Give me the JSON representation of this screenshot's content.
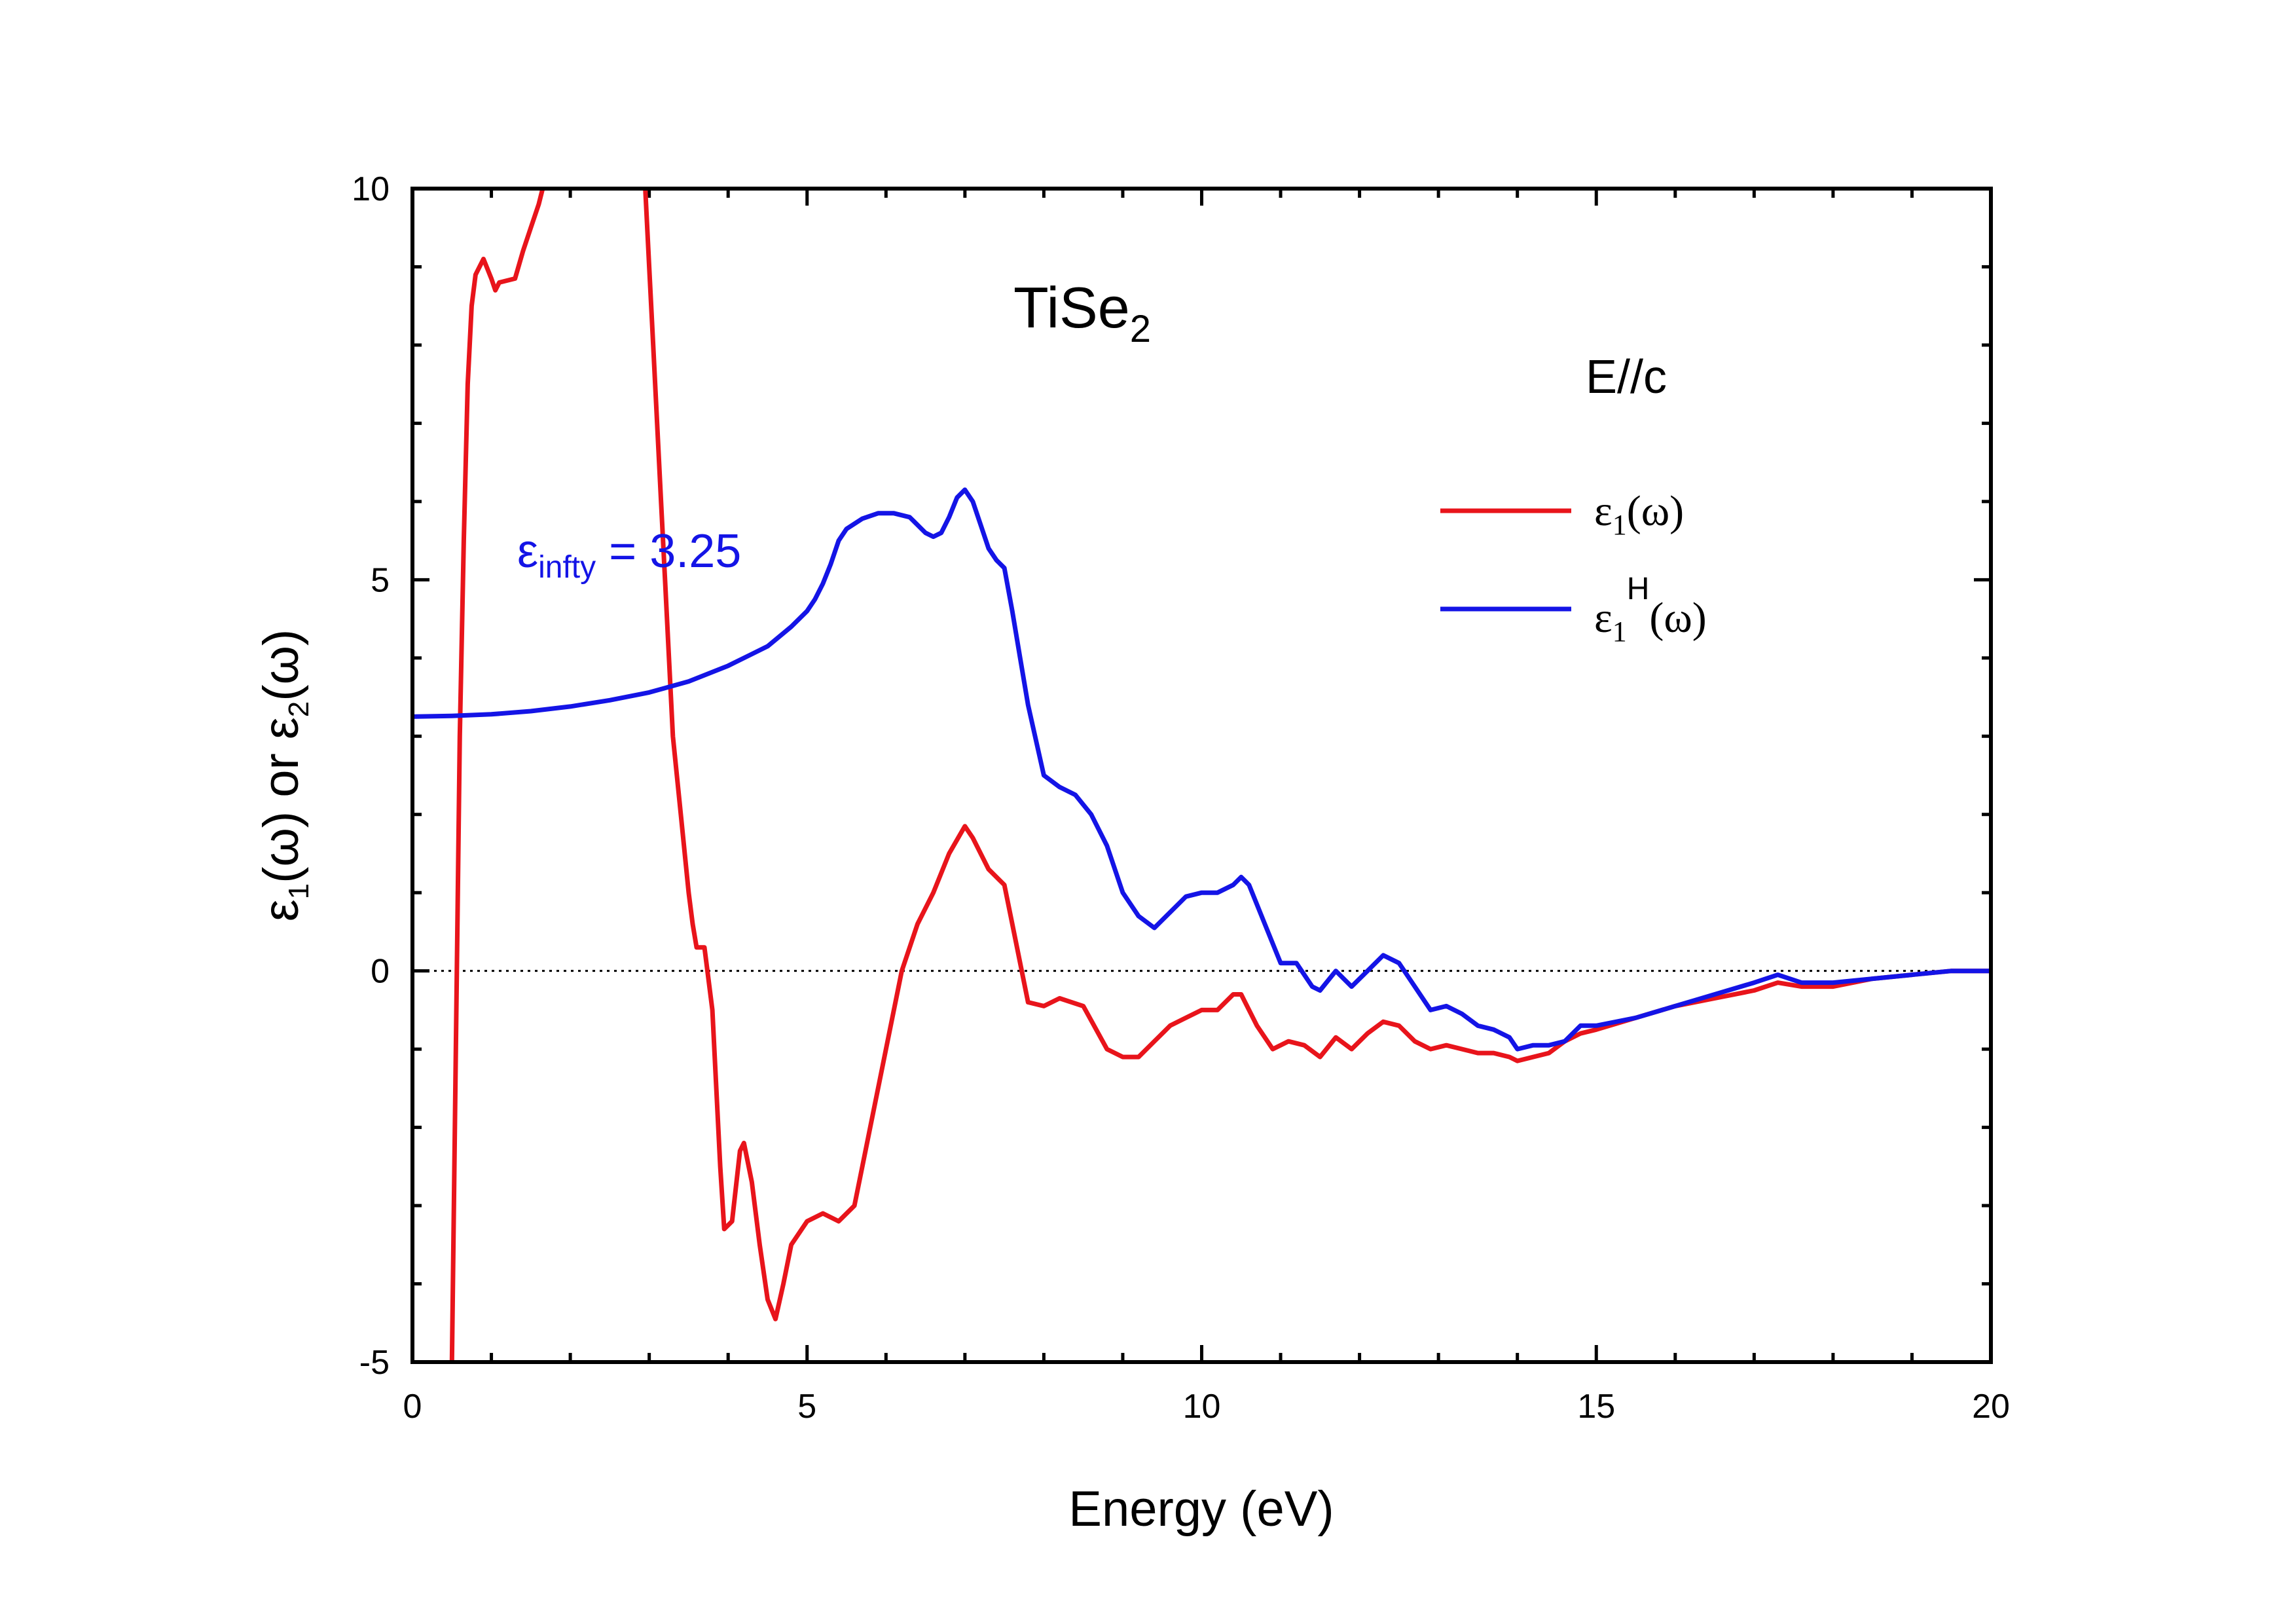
{
  "chart_data": {
    "type": "line",
    "xlabel": "Energy (eV)",
    "ylabel": {
      "part1": "ε",
      "sub1": "1",
      "part2": "(ω) or ε",
      "sub2": "2",
      "part3": "(ω)"
    },
    "xlim": [
      0,
      20
    ],
    "ylim": [
      -5,
      10
    ],
    "xticks": [
      "0",
      "5",
      "10",
      "15",
      "20"
    ],
    "yticks": [
      "-5",
      "0",
      "5",
      "10"
    ],
    "grid": false,
    "zero_line": true,
    "legend_position": "right",
    "annotations": {
      "material": {
        "base": "TiSe",
        "sub": "2"
      },
      "orientation": "E//c",
      "eps_infty": {
        "sym": "ε",
        "sub": "infty",
        "text": " = 3.25"
      }
    },
    "series": [
      {
        "name": "ε1(ω)",
        "legend": {
          "sym": "ε",
          "sub": "1",
          "sup": "",
          "arg": "(ω)"
        },
        "color": "#e8141b",
        "x": [
          0.5,
          0.55,
          0.6,
          0.65,
          0.7,
          0.75,
          0.8,
          0.9,
          1.0,
          1.05,
          1.1,
          1.3,
          1.4,
          1.5,
          1.6,
          1.65,
          1.7,
          2.9,
          2.95,
          3.0,
          3.05,
          3.1,
          3.15,
          3.2,
          3.3,
          3.4,
          3.5,
          3.55,
          3.6,
          3.7,
          3.8,
          3.85,
          3.9,
          3.95,
          4.05,
          4.15,
          4.2,
          4.3,
          4.4,
          4.5,
          4.6,
          4.7,
          4.8,
          5.0,
          5.2,
          5.4,
          5.6,
          5.8,
          6.0,
          6.2,
          6.4,
          6.6,
          6.8,
          7.0,
          7.1,
          7.3,
          7.5,
          7.6,
          7.8,
          8.0,
          8.2,
          8.5,
          8.8,
          9.0,
          9.2,
          9.4,
          9.6,
          9.8,
          10.0,
          10.2,
          10.4,
          10.5,
          10.7,
          10.9,
          11.1,
          11.3,
          11.5,
          11.7,
          11.9,
          12.1,
          12.3,
          12.5,
          12.7,
          12.9,
          13.1,
          13.3,
          13.5,
          13.7,
          13.9,
          14.0,
          14.2,
          14.4,
          14.6,
          14.8,
          15.0,
          15.5,
          16.0,
          16.5,
          17.0,
          17.3,
          17.6,
          18.0,
          18.5,
          19.0,
          19.5,
          20.0
        ],
        "y": [
          -5.0,
          -1.0,
          3.0,
          5.5,
          7.5,
          8.5,
          8.9,
          9.1,
          8.85,
          8.7,
          8.8,
          8.85,
          9.2,
          9.5,
          9.8,
          10.0,
          10.3,
          10.3,
          10.0,
          9.0,
          8.0,
          7.0,
          6.0,
          5.0,
          3.0,
          2.0,
          1.0,
          0.6,
          0.3,
          0.3,
          -0.5,
          -1.5,
          -2.5,
          -3.3,
          -3.2,
          -2.3,
          -2.2,
          -2.7,
          -3.5,
          -4.2,
          -4.45,
          -4.0,
          -3.5,
          -3.2,
          -3.1,
          -3.2,
          -3.0,
          -2.0,
          -1.0,
          0.0,
          0.6,
          1.0,
          1.5,
          1.85,
          1.7,
          1.3,
          1.1,
          0.6,
          -0.4,
          -0.45,
          -0.35,
          -0.45,
          -1.0,
          -1.1,
          -1.1,
          -0.9,
          -0.7,
          -0.6,
          -0.5,
          -0.5,
          -0.3,
          -0.3,
          -0.7,
          -1.0,
          -0.9,
          -0.95,
          -1.1,
          -0.85,
          -1.0,
          -0.8,
          -0.65,
          -0.7,
          -0.9,
          -1.0,
          -0.95,
          -1.0,
          -1.05,
          -1.05,
          -1.1,
          -1.15,
          -1.1,
          -1.05,
          -0.9,
          -0.8,
          -0.75,
          -0.6,
          -0.45,
          -0.35,
          -0.25,
          -0.15,
          -0.2,
          -0.2,
          -0.1,
          -0.05,
          0.0,
          0.0
        ]
      },
      {
        "name": "ε1H(ω)",
        "legend": {
          "sym": "ε",
          "sub": "1",
          "sup": "H",
          "arg": "(ω)"
        },
        "color": "#1414e6",
        "x": [
          0.0,
          0.5,
          1.0,
          1.5,
          2.0,
          2.5,
          3.0,
          3.5,
          4.0,
          4.5,
          4.8,
          5.0,
          5.1,
          5.2,
          5.3,
          5.4,
          5.5,
          5.7,
          5.9,
          6.1,
          6.3,
          6.5,
          6.6,
          6.7,
          6.8,
          6.9,
          7.0,
          7.1,
          7.2,
          7.3,
          7.4,
          7.5,
          7.6,
          7.7,
          7.8,
          8.0,
          8.2,
          8.4,
          8.6,
          8.8,
          9.0,
          9.2,
          9.4,
          9.6,
          9.8,
          10.0,
          10.2,
          10.4,
          10.5,
          10.6,
          10.8,
          11.0,
          11.2,
          11.4,
          11.5,
          11.7,
          11.9,
          12.1,
          12.3,
          12.5,
          12.7,
          12.9,
          13.1,
          13.3,
          13.5,
          13.7,
          13.9,
          14.0,
          14.2,
          14.4,
          14.6,
          14.8,
          15.0,
          15.5,
          16.0,
          16.5,
          17.0,
          17.3,
          17.6,
          18.0,
          18.5,
          19.0,
          19.5,
          20.0
        ],
        "y": [
          3.25,
          3.26,
          3.28,
          3.32,
          3.38,
          3.46,
          3.56,
          3.7,
          3.9,
          4.15,
          4.4,
          4.6,
          4.75,
          4.95,
          5.2,
          5.5,
          5.65,
          5.78,
          5.85,
          5.85,
          5.8,
          5.6,
          5.55,
          5.6,
          5.8,
          6.05,
          6.15,
          6.0,
          5.7,
          5.4,
          5.25,
          5.15,
          4.6,
          4.0,
          3.4,
          2.5,
          2.35,
          2.25,
          2.0,
          1.6,
          1.0,
          0.7,
          0.55,
          0.75,
          0.95,
          1.0,
          1.0,
          1.1,
          1.2,
          1.1,
          0.6,
          0.1,
          0.1,
          -0.2,
          -0.25,
          0.0,
          -0.2,
          0.0,
          0.2,
          0.1,
          -0.2,
          -0.5,
          -0.45,
          -0.55,
          -0.7,
          -0.75,
          -0.85,
          -1.0,
          -0.95,
          -0.95,
          -0.9,
          -0.7,
          -0.7,
          -0.6,
          -0.45,
          -0.3,
          -0.15,
          -0.05,
          -0.15,
          -0.15,
          -0.1,
          -0.05,
          0.0,
          0.0
        ]
      }
    ]
  }
}
